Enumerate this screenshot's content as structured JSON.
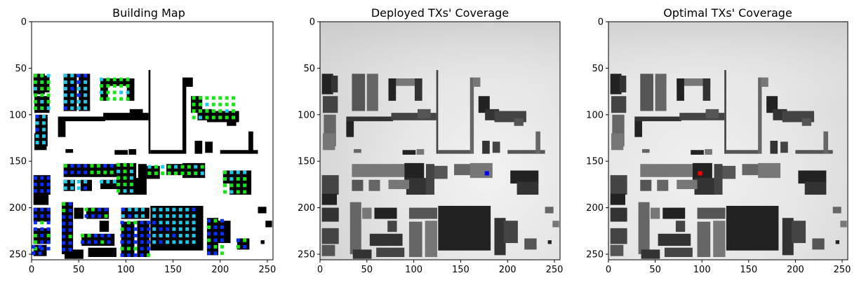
{
  "figure": {
    "background": "#ffffff"
  },
  "chart_data": [
    {
      "type": "heatmap",
      "title": "Building Map",
      "xlabel": "",
      "ylabel": "",
      "xlim": [
        0,
        256
      ],
      "ylim": [
        256,
        0
      ],
      "xticks": [
        0,
        50,
        100,
        150,
        200,
        250
      ],
      "yticks": [
        0,
        50,
        100,
        150,
        200,
        250
      ],
      "colormap": "building mask (white open space, black buildings) with candidate transmitter points colored by value",
      "colors": {
        "open": "#ffffff",
        "building": "#000000",
        "points": [
          "#19e619",
          "#1fc8e8",
          "#0a2dff"
        ]
      }
    },
    {
      "type": "heatmap",
      "title": "Deployed TXs' Coverage",
      "xlabel": "",
      "ylabel": "",
      "xlim": [
        0,
        256
      ],
      "ylim": [
        256,
        0
      ],
      "xticks": [
        0,
        50,
        100,
        150,
        200,
        250
      ],
      "yticks": [
        0,
        50,
        100,
        150,
        200,
        250
      ],
      "colormap": "grayscale",
      "tx_marker": {
        "x": 178,
        "y": 163,
        "color": "#0000ff"
      }
    },
    {
      "type": "heatmap",
      "title": "Optimal TXs' Coverage",
      "xlabel": "",
      "ylabel": "",
      "xlim": [
        0,
        256
      ],
      "ylim": [
        256,
        0
      ],
      "xticks": [
        0,
        50,
        100,
        150,
        200,
        250
      ],
      "yticks": [
        0,
        50,
        100,
        150,
        200,
        250
      ],
      "colormap": "grayscale",
      "tx_marker": {
        "x": 98,
        "y": 163,
        "color": "#ff0000"
      }
    }
  ]
}
